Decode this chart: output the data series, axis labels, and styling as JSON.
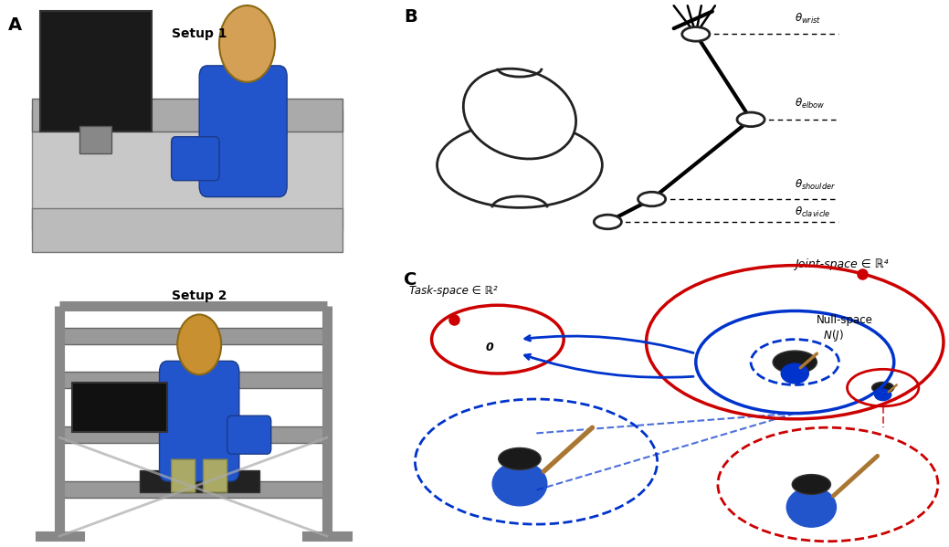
{
  "panel_A_label": "A",
  "panel_B_label": "B",
  "panel_C_label": "C",
  "setup1_label": "Setup 1",
  "setup2_label": "Setup 2",
  "joint_space_label": "Joint-space ∈ ℝ⁴",
  "task_space_label": "Task-space ∈ ℝ²",
  "null_space_label": "Null-space\n N(J)",
  "zero_label": "0",
  "theta_wrist": "θ₁\nwrist",
  "theta_elbow": "θ\nelbow",
  "theta_shoulder": "θ\nshoulder",
  "theta_clavicle": "θ\nclavicle",
  "red_color": "#CC0000",
  "blue_color": "#0033CC",
  "dark_color": "#111111",
  "bg_color": "#FFFFFF"
}
